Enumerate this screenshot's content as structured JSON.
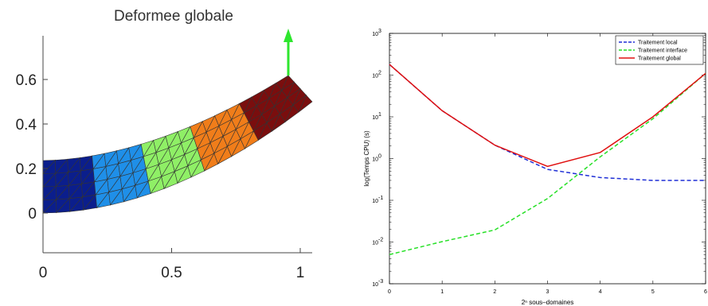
{
  "chart_data": [
    {
      "type": "mesh",
      "title": "Deformee globale",
      "xlabel": "",
      "ylabel": "",
      "xlim": [
        -0.02,
        1.05
      ],
      "ylim": [
        -0.17,
        0.67
      ],
      "xticks": [
        0,
        0.5,
        1
      ],
      "xtick_labels": [
        "0",
        "0.5",
        "1"
      ],
      "yticks": [
        0,
        0.2,
        0.4,
        0.6
      ],
      "ytick_labels": [
        "0",
        "0.2",
        "0.4",
        "0.6"
      ],
      "colors": [
        "#0b1e8c",
        "#1f8fe8",
        "#8fef66",
        "#f07d1a",
        "#7a0e0e"
      ],
      "arrow_color": "#2ee62e",
      "grid": false
    },
    {
      "type": "line",
      "title": "",
      "xlabel": "2ⁿ sous–domaines",
      "ylabel": "log(Temps CPU) (s)",
      "x": [
        0,
        1,
        2,
        3,
        4,
        5,
        6
      ],
      "xlim": [
        0,
        6
      ],
      "ylim_exp": [
        -3,
        3
      ],
      "yscale": "log",
      "xtick_labels": [
        "0",
        "1",
        "2",
        "3",
        "4",
        "5",
        "6"
      ],
      "ytick_labels": [
        "10-3",
        "10-2",
        "10-1",
        "100",
        "101",
        "102",
        "103"
      ],
      "legend_position": "top-right",
      "series": [
        {
          "name": "Traitement local",
          "color": "#1f2fd6",
          "style": "dashed",
          "values": [
            180,
            14,
            2.1,
            0.55,
            0.35,
            0.3,
            0.3
          ]
        },
        {
          "name": "Traitement interface",
          "color": "#27e027",
          "style": "dashed",
          "values": [
            0.005,
            0.0102,
            0.0195,
            0.11,
            1.1,
            9,
            110
          ]
        },
        {
          "name": "Traitement global",
          "color": "#e01010",
          "style": "solid",
          "values": [
            180,
            14,
            2.1,
            0.65,
            1.4,
            10,
            110
          ]
        }
      ]
    }
  ]
}
